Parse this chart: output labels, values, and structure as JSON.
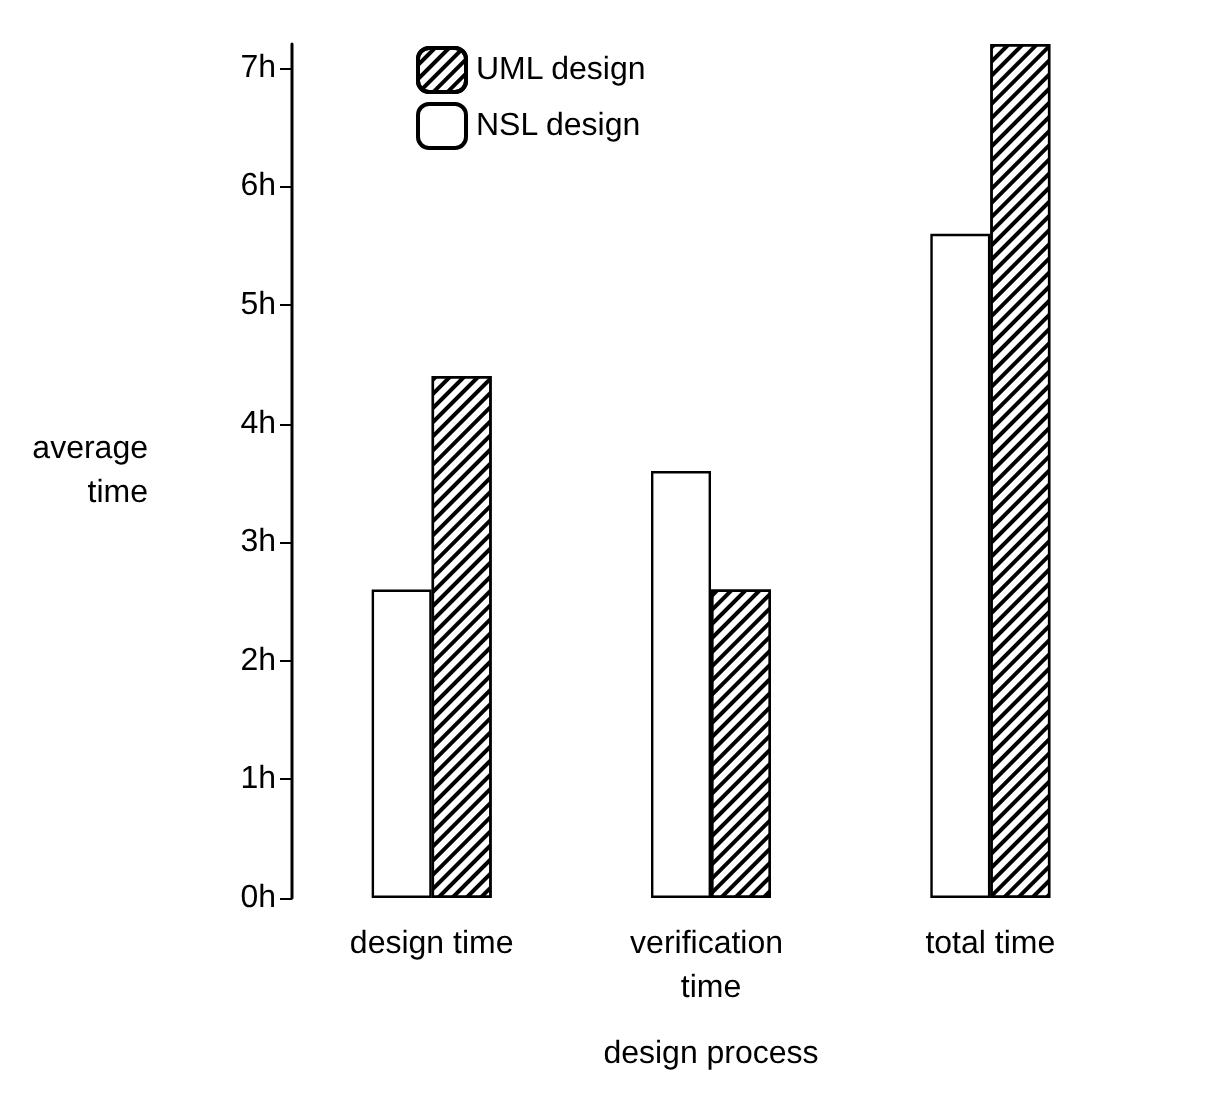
{
  "chart_data": {
    "type": "bar",
    "xlabel": "design process",
    "ylabel": "average\ntime",
    "categories": [
      "design time",
      "verification time",
      "total time"
    ],
    "series": [
      {
        "name": "NSL design",
        "color": "#ffffff",
        "values": [
          2.6,
          3.6,
          5.6
        ]
      },
      {
        "name": "UML design",
        "color": "#000000",
        "values": [
          4.4,
          2.6,
          7.2
        ]
      }
    ],
    "ylim": [
      0,
      7.2
    ],
    "yticks": [
      {
        "value": 0,
        "label": "0h"
      },
      {
        "value": 1,
        "label": "1h"
      },
      {
        "value": 2,
        "label": "2h"
      },
      {
        "value": 3,
        "label": "3h"
      },
      {
        "value": 4,
        "label": "4h"
      },
      {
        "value": 5,
        "label": "5h"
      },
      {
        "value": 6,
        "label": "6h"
      },
      {
        "value": 7,
        "label": "7h"
      }
    ],
    "grid": false,
    "legend": "top left"
  }
}
